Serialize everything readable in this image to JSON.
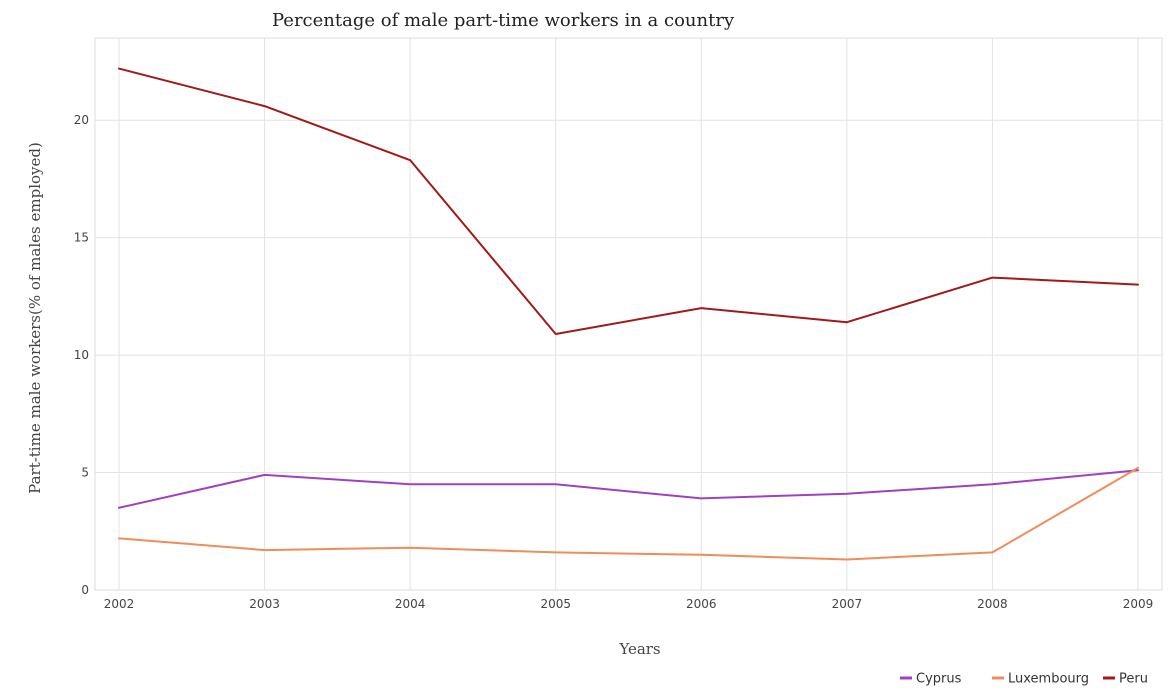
{
  "chart_data": {
    "type": "line",
    "title": "Percentage of male part-time workers in a country",
    "xlabel": "Years",
    "ylabel": "Part-time male workers(% of males employed)",
    "categories": [
      "2002",
      "2003",
      "2004",
      "2005",
      "2006",
      "2007",
      "2008",
      "2009"
    ],
    "ylim": [
      0,
      23.5
    ],
    "yticks": [
      0,
      5,
      10,
      15,
      20
    ],
    "grid": true,
    "legend_position": "bottom-right",
    "series": [
      {
        "name": "Cyprus",
        "color": "#a040c0",
        "values": [
          3.5,
          4.9,
          4.5,
          4.5,
          3.9,
          4.1,
          4.5,
          5.1
        ]
      },
      {
        "name": "Luxembourg",
        "color": "#f08c5a",
        "values": [
          2.2,
          1.7,
          1.8,
          1.6,
          1.5,
          1.3,
          1.6,
          5.2
        ]
      },
      {
        "name": "Peru",
        "color": "#a31818",
        "values": [
          22.2,
          20.6,
          18.3,
          10.9,
          12.0,
          11.4,
          13.3,
          13.0
        ]
      }
    ]
  }
}
